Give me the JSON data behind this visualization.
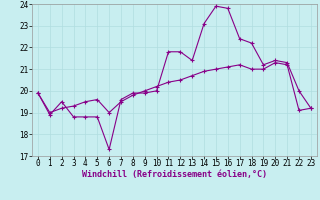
{
  "title": "",
  "xlabel": "Windchill (Refroidissement éolien,°C)",
  "background_color": "#c8eef0",
  "grid_color": "#b0dde0",
  "line_color": "#880088",
  "xlim": [
    -0.5,
    23.5
  ],
  "ylim": [
    17,
    24
  ],
  "yticks": [
    17,
    18,
    19,
    20,
    21,
    22,
    23,
    24
  ],
  "xticks": [
    0,
    1,
    2,
    3,
    4,
    5,
    6,
    7,
    8,
    9,
    10,
    11,
    12,
    13,
    14,
    15,
    16,
    17,
    18,
    19,
    20,
    21,
    22,
    23
  ],
  "series1_x": [
    0,
    1,
    2,
    3,
    4,
    5,
    6,
    7,
    8,
    9,
    10,
    11,
    12,
    13,
    14,
    15,
    16,
    17,
    18,
    19,
    20,
    21,
    22,
    23
  ],
  "series1_y": [
    19.9,
    18.9,
    19.5,
    18.8,
    18.8,
    18.8,
    17.3,
    19.6,
    19.9,
    19.9,
    20.0,
    21.8,
    21.8,
    21.4,
    23.1,
    23.9,
    23.8,
    22.4,
    22.2,
    21.2,
    21.4,
    21.3,
    20.0,
    19.2
  ],
  "series2_x": [
    0,
    1,
    2,
    3,
    4,
    5,
    6,
    7,
    8,
    9,
    10,
    11,
    12,
    13,
    14,
    15,
    16,
    17,
    18,
    19,
    20,
    21,
    22,
    23
  ],
  "series2_y": [
    19.9,
    19.0,
    19.2,
    19.3,
    19.5,
    19.6,
    19.0,
    19.5,
    19.8,
    20.0,
    20.2,
    20.4,
    20.5,
    20.7,
    20.9,
    21.0,
    21.1,
    21.2,
    21.0,
    21.0,
    21.3,
    21.2,
    19.1,
    19.2
  ],
  "tick_fontsize": 5.5,
  "xlabel_fontsize": 6.0,
  "xlabel_color": "#880088"
}
